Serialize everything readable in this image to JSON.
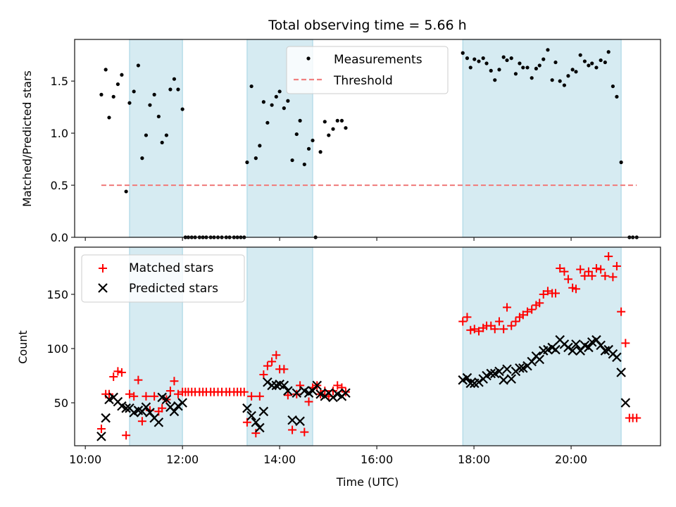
{
  "chart_data": [
    {
      "type": "scatter",
      "title": "Total observing time = 5.66 h",
      "xlabel": "",
      "ylabel": "Matched/Predicted stars",
      "xlim": [
        9.78,
        21.84
      ],
      "ylim": [
        0.0,
        1.9
      ],
      "yticks": [
        0.0,
        0.5,
        1.0,
        1.5
      ],
      "ytick_labels": [
        "0.0",
        "0.5",
        "1.0",
        "1.5"
      ],
      "xticks": [
        10,
        12,
        14,
        16,
        18,
        20
      ],
      "xtick_labels": [],
      "grid": false,
      "shaded_spans": [
        [
          10.91,
          12.0
        ],
        [
          13.33,
          14.68
        ],
        [
          17.77,
          21.03
        ]
      ],
      "legend": {
        "placement": "top-center",
        "entries": [
          "Measurements",
          "Threshold"
        ]
      },
      "threshold": {
        "name": "Threshold",
        "value": 0.5,
        "x_range": [
          10.33,
          21.35
        ],
        "color": "#f08080"
      },
      "series": [
        {
          "name": "Measurements",
          "marker": "dot",
          "color": "#000000",
          "x": [
            10.33,
            10.42,
            10.49,
            10.58,
            10.67,
            10.75,
            10.84,
            10.91,
            11.0,
            11.09,
            11.17,
            11.25,
            11.33,
            11.42,
            11.51,
            11.58,
            11.67,
            11.75,
            11.83,
            11.91,
            12.0,
            12.06,
            12.12,
            12.19,
            12.26,
            12.35,
            12.42,
            12.49,
            12.58,
            12.65,
            12.73,
            12.81,
            12.9,
            12.97,
            13.06,
            13.13,
            13.2,
            13.27,
            13.33,
            13.42,
            13.51,
            13.59,
            13.67,
            13.75,
            13.84,
            13.93,
            14.0,
            14.09,
            14.17,
            14.26,
            14.35,
            14.42,
            14.51,
            14.6,
            14.68,
            14.74,
            14.84,
            14.93,
            15.01,
            15.1,
            15.19,
            15.28,
            15.36,
            17.77,
            17.86,
            17.93,
            18.01,
            18.1,
            18.19,
            18.26,
            18.35,
            18.43,
            18.52,
            18.61,
            18.68,
            18.77,
            18.86,
            18.94,
            19.01,
            19.1,
            19.19,
            19.28,
            19.35,
            19.43,
            19.52,
            19.61,
            19.68,
            19.77,
            19.86,
            19.94,
            20.03,
            20.1,
            20.19,
            20.28,
            20.36,
            20.43,
            20.52,
            20.61,
            20.7,
            20.77,
            20.86,
            20.94,
            21.03,
            21.2,
            21.27,
            21.35
          ],
          "y": [
            1.37,
            1.61,
            1.15,
            1.35,
            1.47,
            1.56,
            0.44,
            1.29,
            1.4,
            1.65,
            0.76,
            0.98,
            1.27,
            1.37,
            1.16,
            0.91,
            0.98,
            1.42,
            1.52,
            1.42,
            1.23,
            0,
            0,
            0,
            0,
            0,
            0,
            0,
            0,
            0,
            0,
            0,
            0,
            0,
            0,
            0,
            0,
            0,
            0.72,
            1.45,
            0.76,
            0.88,
            1.3,
            1.1,
            1.27,
            1.35,
            1.4,
            1.24,
            1.31,
            0.74,
            0.99,
            1.12,
            0.7,
            0.85,
            0.93,
            0.0,
            0.82,
            1.11,
            0.98,
            1.04,
            1.12,
            1.12,
            1.05,
            1.77,
            1.72,
            1.63,
            1.71,
            1.69,
            1.72,
            1.67,
            1.6,
            1.51,
            1.61,
            1.73,
            1.7,
            1.72,
            1.57,
            1.67,
            1.63,
            1.63,
            1.53,
            1.62,
            1.65,
            1.71,
            1.8,
            1.51,
            1.68,
            1.5,
            1.46,
            1.55,
            1.61,
            1.59,
            1.75,
            1.69,
            1.65,
            1.67,
            1.63,
            1.7,
            1.68,
            1.78,
            1.45,
            1.35,
            0.72,
            0,
            0,
            0
          ]
        }
      ]
    },
    {
      "type": "scatter",
      "title": "",
      "xlabel": "Time (UTC)",
      "ylabel": "Count",
      "xlim": [
        9.78,
        21.84
      ],
      "ylim": [
        10.4,
        193.5
      ],
      "yticks": [
        50,
        100,
        150
      ],
      "ytick_labels": [
        "50",
        "100",
        "150"
      ],
      "xticks": [
        10,
        12,
        14,
        16,
        18,
        20
      ],
      "xtick_labels": [
        "10:00",
        "12:00",
        "14:00",
        "16:00",
        "18:00",
        "20:00"
      ],
      "grid": false,
      "shaded_spans": [
        [
          10.91,
          12.0
        ],
        [
          13.33,
          14.68
        ],
        [
          17.77,
          21.03
        ]
      ],
      "legend": {
        "placement": "top-left",
        "entries": [
          "Matched stars",
          "Predicted stars"
        ]
      },
      "series": [
        {
          "name": "Matched stars",
          "marker": "plus",
          "color": "#ff0000",
          "x": [
            10.33,
            10.42,
            10.49,
            10.58,
            10.67,
            10.75,
            10.84,
            10.91,
            11.0,
            11.09,
            11.17,
            11.25,
            11.33,
            11.42,
            11.51,
            11.58,
            11.67,
            11.75,
            11.83,
            11.91,
            12.0,
            12.06,
            12.12,
            12.19,
            12.26,
            12.35,
            12.42,
            12.49,
            12.58,
            12.65,
            12.73,
            12.81,
            12.9,
            12.97,
            13.06,
            13.13,
            13.2,
            13.27,
            13.33,
            13.42,
            13.51,
            13.59,
            13.67,
            13.75,
            13.84,
            13.93,
            14.0,
            14.09,
            14.17,
            14.26,
            14.35,
            14.42,
            14.51,
            14.6,
            14.68,
            14.77,
            14.84,
            14.93,
            15.01,
            15.1,
            15.19,
            15.28,
            15.36,
            17.77,
            17.86,
            17.93,
            18.01,
            18.1,
            18.19,
            18.26,
            18.35,
            18.43,
            18.52,
            18.61,
            18.68,
            18.77,
            18.86,
            18.94,
            19.01,
            19.1,
            19.19,
            19.28,
            19.35,
            19.43,
            19.52,
            19.61,
            19.68,
            19.77,
            19.86,
            19.94,
            20.03,
            20.1,
            20.19,
            20.28,
            20.36,
            20.43,
            20.52,
            20.61,
            20.7,
            20.77,
            20.86,
            20.94,
            21.03,
            21.12,
            21.2,
            21.27,
            21.35
          ],
          "y": [
            26,
            58,
            58,
            74,
            79,
            78,
            20,
            58,
            56,
            71,
            33,
            56,
            43,
            56,
            42,
            45,
            53,
            61,
            70,
            58,
            60,
            60,
            60,
            60,
            60,
            60,
            60,
            60,
            60,
            60,
            60,
            60,
            60,
            60,
            60,
            60,
            60,
            60,
            32,
            56,
            22,
            56,
            76,
            84,
            88,
            94,
            81,
            81,
            57,
            25,
            58,
            66,
            23,
            51,
            64,
            66,
            58,
            61,
            56,
            61,
            66,
            64,
            60,
            125,
            129,
            117,
            118,
            116,
            119,
            121,
            121,
            118,
            125,
            118,
            138,
            121,
            125,
            129,
            131,
            134,
            136,
            140,
            142,
            150,
            153,
            151,
            151,
            174,
            171,
            164,
            156,
            155,
            173,
            167,
            171,
            167,
            174,
            173,
            167,
            185,
            166,
            176,
            134,
            105,
            36,
            36,
            36
          ]
        },
        {
          "name": "Predicted stars",
          "marker": "x",
          "color": "#000000",
          "x": [
            10.33,
            10.42,
            10.49,
            10.58,
            10.67,
            10.75,
            10.84,
            10.91,
            11.0,
            11.09,
            11.17,
            11.25,
            11.33,
            11.42,
            11.51,
            11.58,
            11.67,
            11.75,
            11.83,
            11.91,
            12.0,
            13.33,
            13.42,
            13.51,
            13.59,
            13.67,
            13.75,
            13.84,
            13.93,
            14.0,
            14.09,
            14.17,
            14.26,
            14.35,
            14.42,
            14.51,
            14.6,
            14.68,
            14.77,
            14.84,
            14.93,
            15.01,
            15.1,
            15.19,
            15.28,
            15.36,
            17.77,
            17.86,
            17.93,
            18.01,
            18.1,
            18.19,
            18.26,
            18.35,
            18.43,
            18.52,
            18.61,
            18.68,
            18.77,
            18.86,
            18.94,
            19.01,
            19.1,
            19.19,
            19.28,
            19.35,
            19.43,
            19.52,
            19.61,
            19.68,
            19.77,
            19.86,
            19.94,
            20.03,
            20.1,
            20.19,
            20.28,
            20.36,
            20.43,
            20.52,
            20.61,
            20.7,
            20.77,
            20.86,
            20.94,
            21.03,
            21.12
          ],
          "y": [
            19,
            36,
            53,
            55,
            51,
            47,
            45,
            45,
            41,
            43,
            42,
            46,
            41,
            36,
            32,
            55,
            53,
            46,
            42,
            47,
            50,
            45,
            38,
            32,
            27,
            42,
            69,
            66,
            66,
            67,
            66,
            61,
            34,
            59,
            33,
            61,
            59,
            61,
            66,
            58,
            56,
            59,
            55,
            58,
            56,
            59,
            71,
            73,
            68,
            68,
            69,
            72,
            75,
            77,
            77,
            79,
            71,
            81,
            72,
            79,
            82,
            82,
            84,
            88,
            93,
            90,
            98,
            99,
            101,
            99,
            108,
            104,
            101,
            98,
            104,
            98,
            103,
            101,
            106,
            108,
            103,
            98,
            99,
            95,
            92,
            78,
            50
          ]
        }
      ]
    }
  ]
}
